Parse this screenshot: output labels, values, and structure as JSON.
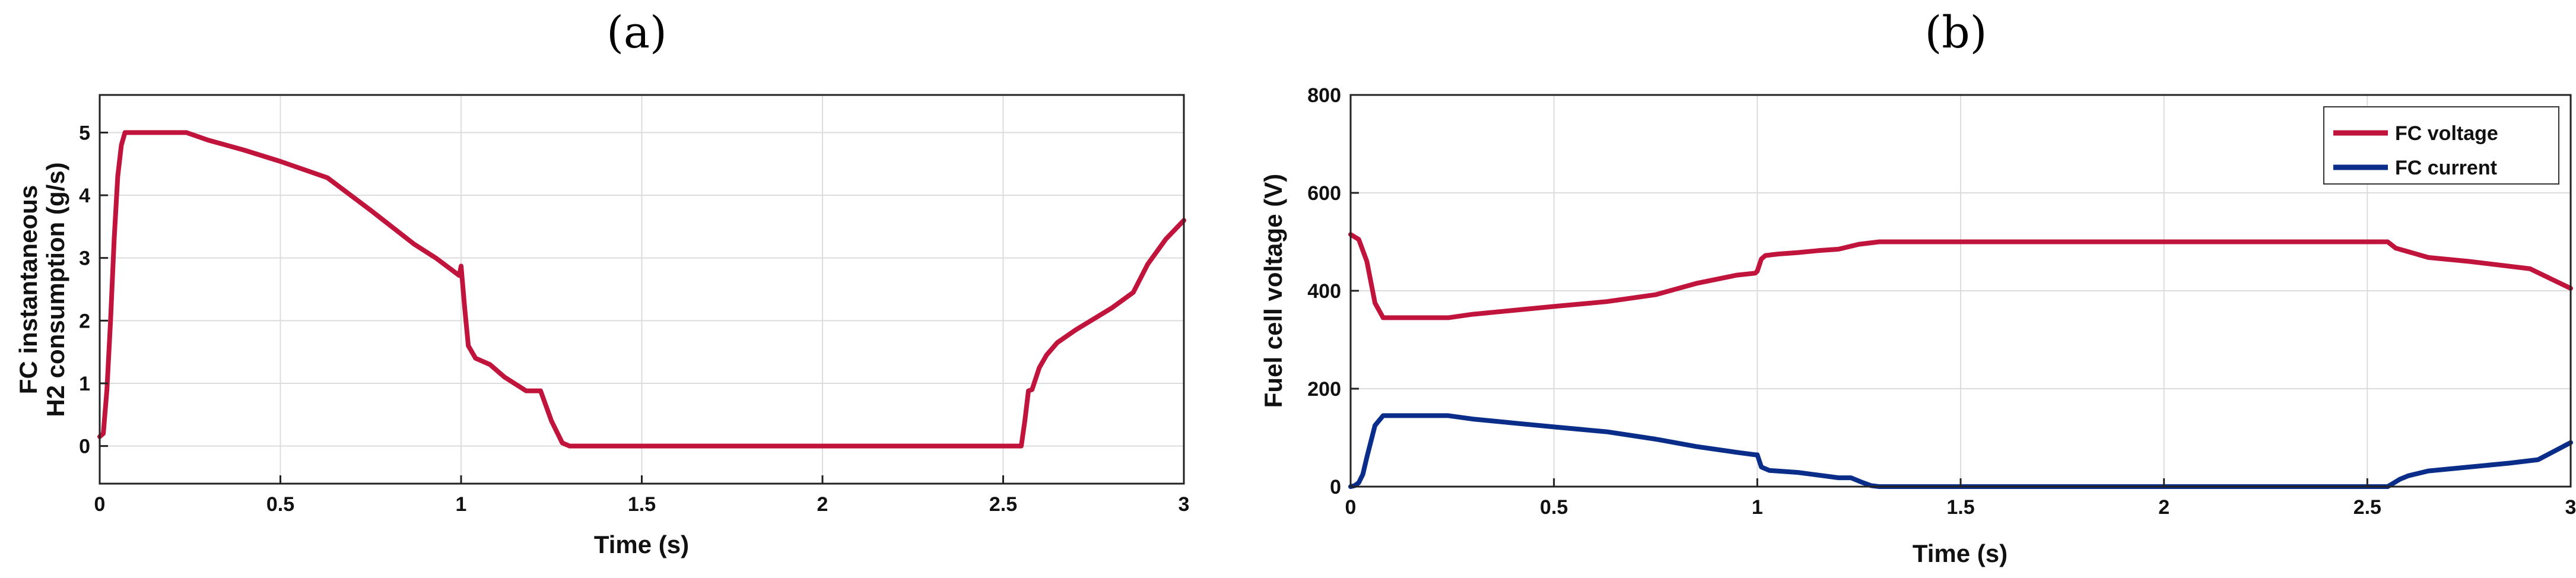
{
  "chart_data": [
    {
      "type": "line",
      "panel_label": "(a)",
      "title": "",
      "xlabel": "Time (s)",
      "ylabel": [
        "FC instantaneous",
        "H2 consumption (g/s)"
      ],
      "xlim": [
        0,
        3
      ],
      "ylim": [
        -0.6,
        5.6
      ],
      "xticks": [
        0,
        0.5,
        1,
        1.5,
        2,
        2.5,
        3
      ],
      "xtick_labels": [
        "0",
        "0.5",
        "1",
        "1.5",
        "2",
        "2.5",
        "3"
      ],
      "yticks": [
        0,
        1,
        2,
        3,
        4,
        5
      ],
      "ytick_labels": [
        "0",
        "1",
        "2",
        "3",
        "4",
        "5"
      ],
      "grid": true,
      "series": [
        {
          "color": "#c0143c",
          "x": [
            0,
            0.01,
            0.02,
            0.03,
            0.04,
            0.05,
            0.06,
            0.07,
            0.08,
            0.24,
            0.3,
            0.4,
            0.5,
            0.63,
            0.75,
            0.87,
            0.93,
            0.995,
            1.0,
            1.01,
            1.02,
            1.04,
            1.08,
            1.12,
            1.18,
            1.22,
            1.25,
            1.28,
            1.3,
            2.0,
            2.55,
            2.56,
            2.57,
            2.58,
            2.6,
            2.62,
            2.65,
            2.7,
            2.8,
            2.86,
            2.9,
            2.95,
            3.0
          ],
          "y": [
            0.15,
            0.2,
            0.9,
            2.0,
            3.3,
            4.3,
            4.8,
            5.0,
            5.0,
            5.0,
            4.88,
            4.72,
            4.54,
            4.28,
            3.76,
            3.22,
            3.0,
            2.72,
            2.87,
            2.2,
            1.6,
            1.4,
            1.3,
            1.1,
            0.88,
            0.88,
            0.4,
            0.05,
            0.0,
            0.0,
            0.0,
            0.4,
            0.88,
            0.9,
            1.25,
            1.45,
            1.65,
            1.85,
            2.2,
            2.45,
            2.9,
            3.3,
            3.6
          ]
        }
      ]
    },
    {
      "type": "line",
      "panel_label": "(b)",
      "title": "",
      "xlabel": "Time (s)",
      "ylabel": "Fuel cell voltage (V)",
      "xlim": [
        0,
        3
      ],
      "ylim": [
        0,
        800
      ],
      "xticks": [
        0,
        0.5,
        1,
        1.5,
        2,
        2.5,
        3
      ],
      "xtick_labels": [
        "0",
        "0.5",
        "1",
        "1.5",
        "2",
        "2.5",
        "3"
      ],
      "yticks": [
        0,
        200,
        400,
        600,
        800
      ],
      "ytick_labels": [
        "0",
        "200",
        "400",
        "600",
        "800"
      ],
      "grid": true,
      "legend_position": "top-right",
      "series": [
        {
          "name": "FC voltage",
          "color": "#c0143c",
          "x": [
            0,
            0.02,
            0.04,
            0.06,
            0.08,
            0.24,
            0.3,
            0.4,
            0.5,
            0.63,
            0.75,
            0.85,
            0.95,
            0.995,
            1.0,
            1.01,
            1.02,
            1.05,
            1.1,
            1.15,
            1.2,
            1.25,
            1.3,
            2.0,
            2.55,
            2.57,
            2.6,
            2.65,
            2.75,
            2.9,
            3.0
          ],
          "y": [
            515,
            505,
            460,
            375,
            345,
            345,
            352,
            360,
            368,
            378,
            392,
            415,
            432,
            436,
            440,
            465,
            472,
            475,
            478,
            482,
            485,
            495,
            500,
            500,
            500,
            487,
            480,
            468,
            460,
            445,
            405
          ]
        },
        {
          "name": "FC current",
          "color": "#0a2d8a",
          "x": [
            0,
            0.01,
            0.02,
            0.03,
            0.04,
            0.06,
            0.08,
            0.24,
            0.3,
            0.4,
            0.5,
            0.63,
            0.75,
            0.85,
            0.95,
            0.995,
            1.0,
            1.01,
            1.03,
            1.1,
            1.2,
            1.23,
            1.26,
            1.28,
            1.3,
            2.0,
            2.55,
            2.56,
            2.58,
            2.6,
            2.65,
            2.75,
            2.85,
            2.92,
            3.0
          ],
          "y": [
            0,
            2,
            8,
            25,
            60,
            125,
            145,
            145,
            138,
            130,
            122,
            112,
            97,
            82,
            70,
            65,
            65,
            40,
            33,
            29,
            18,
            18,
            8,
            2,
            0,
            0,
            0,
            5,
            15,
            22,
            32,
            40,
            48,
            55,
            90
          ]
        }
      ]
    }
  ]
}
